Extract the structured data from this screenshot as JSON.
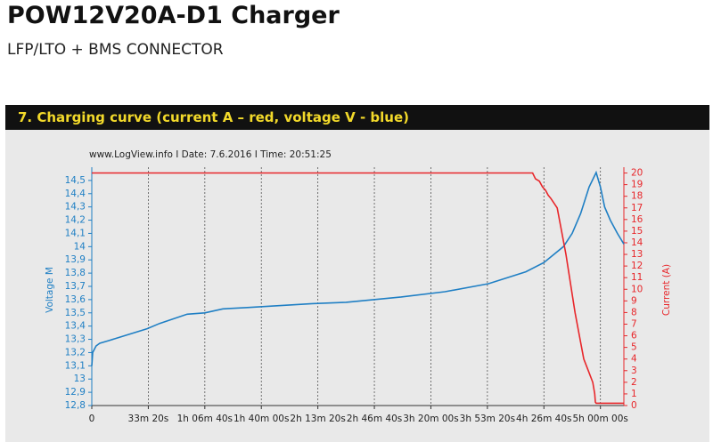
{
  "header": {
    "title": "POW12V20A-D1 Charger",
    "subtitle": "LFP/LTO + BMS CONNECTOR"
  },
  "section": {
    "heading": "7.  Charging curve  (current A – red,  voltage V - blue)"
  },
  "chart_data": {
    "type": "line",
    "note": "www.LogView.info  I  Date: 7.6.2016  I  Time: 20:51:25",
    "ylabel": "Voltage M",
    "y2label": "Current (A)",
    "xlim": [
      0,
      18830
    ],
    "xticks": [
      {
        "value": 0,
        "label": "0"
      },
      {
        "value": 2000,
        "label": "33m 20s"
      },
      {
        "value": 4000,
        "label": "1h 06m 40s"
      },
      {
        "value": 6000,
        "label": "1h 40m 00s"
      },
      {
        "value": 8000,
        "label": "2h 13m 20s"
      },
      {
        "value": 10000,
        "label": "2h 46m 40s"
      },
      {
        "value": 12000,
        "label": "3h 20m 00s"
      },
      {
        "value": 14000,
        "label": "3h 53m 20s"
      },
      {
        "value": 16000,
        "label": "4h 26m 40s"
      },
      {
        "value": 18000,
        "label": "5h 00m 00s"
      }
    ],
    "ylim": [
      12.8,
      14.6
    ],
    "yticks": [
      {
        "value": 12.8,
        "label": "12,8"
      },
      {
        "value": 12.9,
        "label": "12,9"
      },
      13,
      {
        "value": 13.1,
        "label": "13,1"
      },
      {
        "value": 13.2,
        "label": "13,2"
      },
      {
        "value": 13.3,
        "label": "13,3"
      },
      {
        "value": 13.4,
        "label": "13,4"
      },
      {
        "value": 13.5,
        "label": "13,5"
      },
      {
        "value": 13.6,
        "label": "13,6"
      },
      {
        "value": 13.7,
        "label": "13,7"
      },
      {
        "value": 13.8,
        "label": "13,8"
      },
      {
        "value": 13.9,
        "label": "13,9"
      },
      14,
      {
        "value": 14.1,
        "label": "14,1"
      },
      {
        "value": 14.2,
        "label": "14,2"
      },
      {
        "value": 14.3,
        "label": "14,3"
      },
      {
        "value": 14.4,
        "label": "14,4"
      },
      {
        "value": 14.5,
        "label": "14,5"
      }
    ],
    "y2lim": [
      0,
      20.5
    ],
    "y2ticks": [
      0,
      1,
      2,
      3,
      4,
      5,
      6,
      7,
      8,
      9,
      10,
      11,
      12,
      13,
      14,
      15,
      16,
      17,
      18,
      19,
      20
    ],
    "grid": true,
    "series": [
      {
        "color": "#1f7fc4",
        "axis": "y",
        "x": [
          0,
          30,
          150,
          280,
          600,
          1500,
          1960,
          2400,
          3375,
          4000,
          4640,
          5500,
          7800,
          9000,
          10950,
          12500,
          14040,
          15360,
          16000,
          16690,
          17000,
          17300,
          17600,
          17850,
          18000,
          18150,
          18350,
          18600,
          18830
        ],
        "values": [
          13.1,
          13.2,
          13.25,
          13.27,
          13.29,
          13.35,
          13.38,
          13.42,
          13.49,
          13.5,
          13.53,
          13.54,
          13.57,
          13.58,
          13.62,
          13.66,
          13.72,
          13.81,
          13.88,
          14.0,
          14.1,
          14.25,
          14.45,
          14.56,
          14.45,
          14.3,
          14.2,
          14.1,
          14.02
        ]
      },
      {
        "color": "#e8262a",
        "axis": "y2",
        "x": [
          0,
          15600,
          15700,
          15840,
          15950,
          16060,
          16150,
          16250,
          16470,
          16780,
          17100,
          17410,
          17570,
          17730,
          17800,
          17820,
          17850,
          18830
        ],
        "values": [
          20,
          20,
          19.5,
          19.3,
          18.8,
          18.5,
          18.1,
          17.8,
          17,
          13,
          8,
          4,
          3,
          2,
          1,
          0.3,
          0.2,
          0.2
        ]
      }
    ]
  }
}
